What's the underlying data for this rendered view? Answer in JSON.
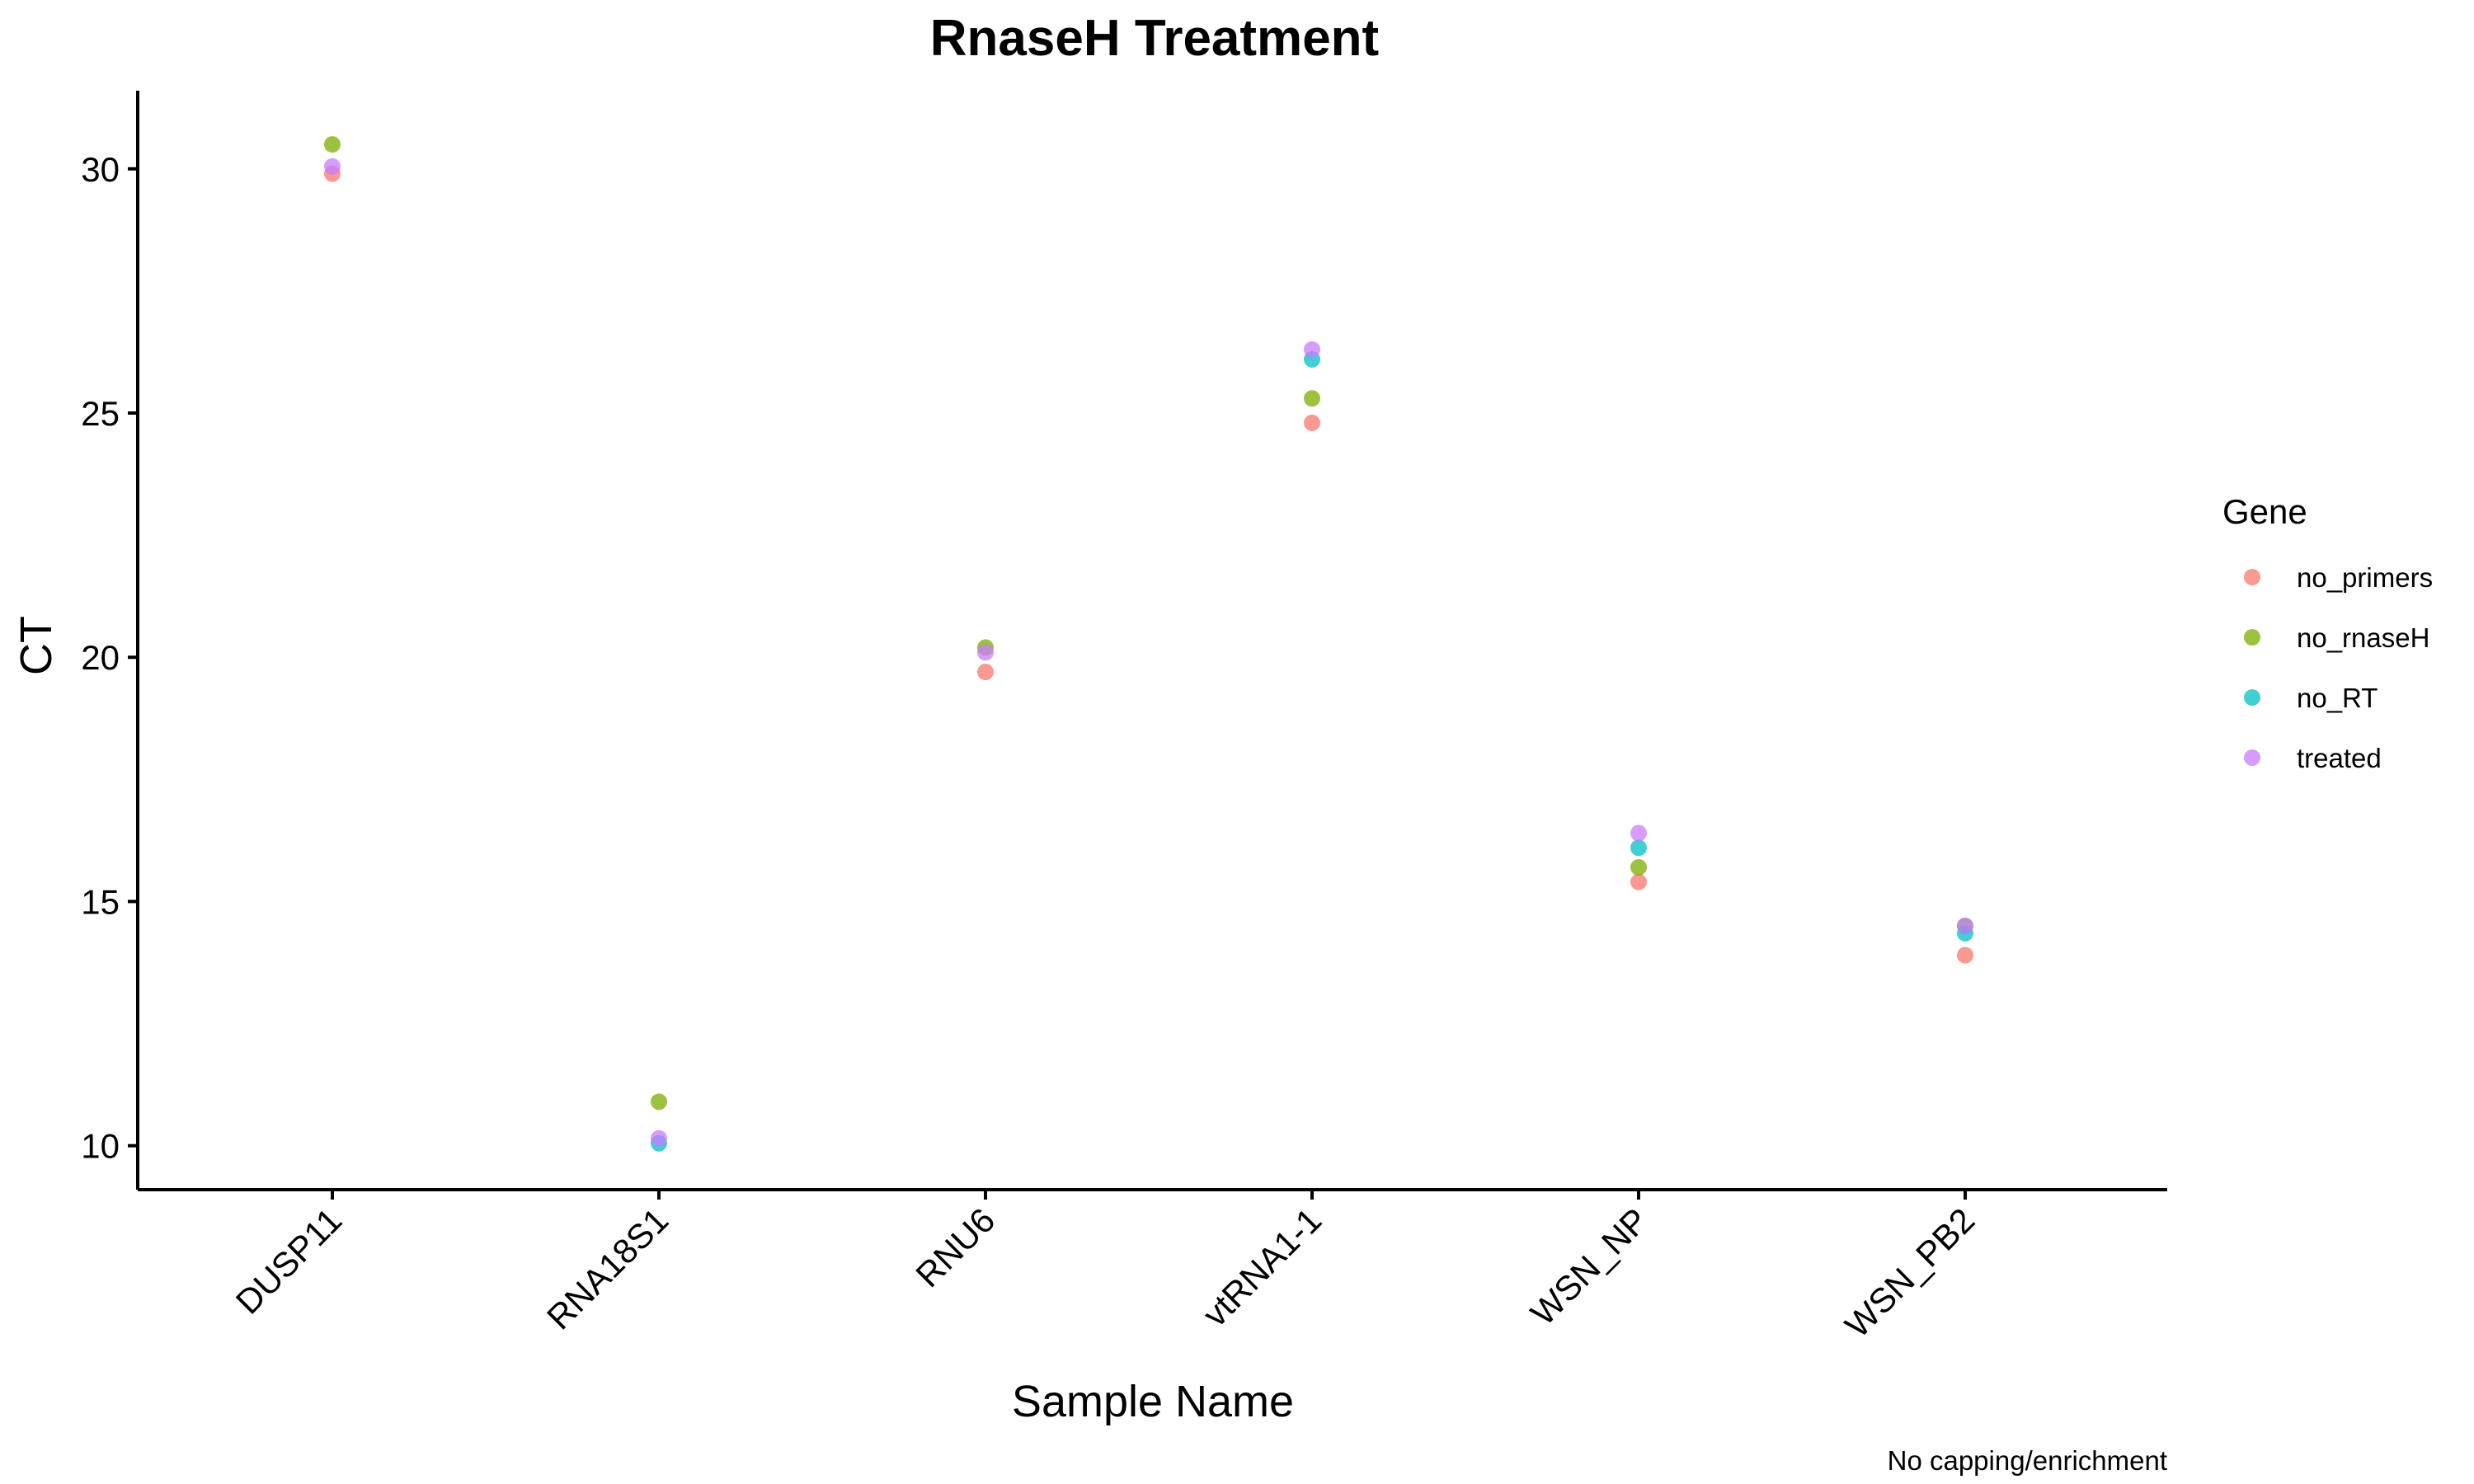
{
  "chart_data": {
    "type": "scatter",
    "title": "RnaseH Treatment",
    "xlabel": "Sample Name",
    "ylabel": "CT",
    "caption": "No capping/enrichment",
    "categories": [
      "DUSP11",
      "RNA18S1",
      "RNU6",
      "vtRNA1-1",
      "WSN_NP",
      "WSN_PB2"
    ],
    "ylim": [
      9.1,
      31.6
    ],
    "yticks": [
      10,
      15,
      20,
      25,
      30
    ],
    "grid": false,
    "legend": {
      "title": "Gene",
      "placement": "right"
    },
    "series": [
      {
        "name": "no_primers",
        "color": "#F8766D",
        "values": [
          29.9,
          null,
          19.7,
          24.8,
          15.4,
          13.9
        ]
      },
      {
        "name": "no_rnaseH",
        "color": "#7CAE00",
        "values": [
          30.5,
          10.9,
          20.2,
          25.3,
          15.7,
          14.5
        ]
      },
      {
        "name": "no_RT",
        "color": "#00BFC4",
        "values": [
          null,
          10.05,
          null,
          26.1,
          16.1,
          14.35
        ]
      },
      {
        "name": "treated",
        "color": "#C77CFF",
        "values": [
          30.05,
          10.15,
          20.1,
          26.3,
          16.4,
          14.5
        ]
      }
    ]
  }
}
